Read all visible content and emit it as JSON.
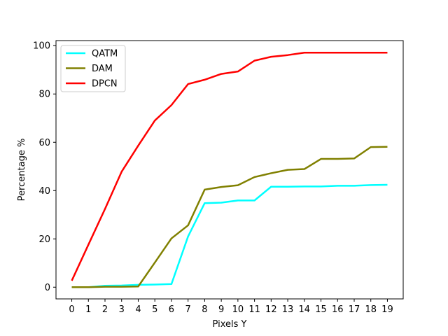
{
  "chart_data": {
    "type": "line",
    "title": "",
    "xlabel": "Pixels Y",
    "ylabel": "Percentage %",
    "x": [
      0,
      1,
      2,
      3,
      4,
      5,
      6,
      7,
      8,
      9,
      10,
      11,
      12,
      13,
      14,
      15,
      16,
      17,
      18,
      19
    ],
    "xlim": [
      -0.95,
      19.95
    ],
    "ylim": [
      -4.85,
      102.1
    ],
    "xticks": [
      0,
      1,
      2,
      3,
      4,
      5,
      6,
      7,
      8,
      9,
      10,
      11,
      12,
      13,
      14,
      15,
      16,
      17,
      18,
      19
    ],
    "yticks": [
      0,
      20,
      40,
      60,
      80,
      100
    ],
    "grid": false,
    "legend_position": "top-left",
    "series": [
      {
        "name": "QATM",
        "color": "#00ffff",
        "values": [
          0,
          0,
          0.6,
          0.7,
          1.0,
          1.1,
          1.3,
          21.0,
          34.8,
          35.0,
          35.9,
          35.9,
          41.6,
          41.6,
          41.7,
          41.7,
          42.0,
          42.0,
          42.3,
          42.4
        ]
      },
      {
        "name": "DAM",
        "color": "#808000",
        "values": [
          0,
          0,
          0.2,
          0.2,
          0.3,
          10.2,
          20.2,
          25.6,
          40.4,
          41.5,
          42.2,
          45.6,
          47.2,
          48.6,
          48.9,
          53.1,
          53.1,
          53.3,
          58.0,
          58.1
        ]
      },
      {
        "name": "DPCN",
        "color": "#ff0000",
        "values": [
          2.7,
          17.6,
          32.4,
          47.8,
          58.6,
          69.0,
          75.4,
          84.1,
          85.9,
          88.3,
          89.3,
          93.8,
          95.4,
          96.1,
          97.1,
          97.1,
          97.1,
          97.1,
          97.1,
          97.1
        ]
      }
    ]
  }
}
